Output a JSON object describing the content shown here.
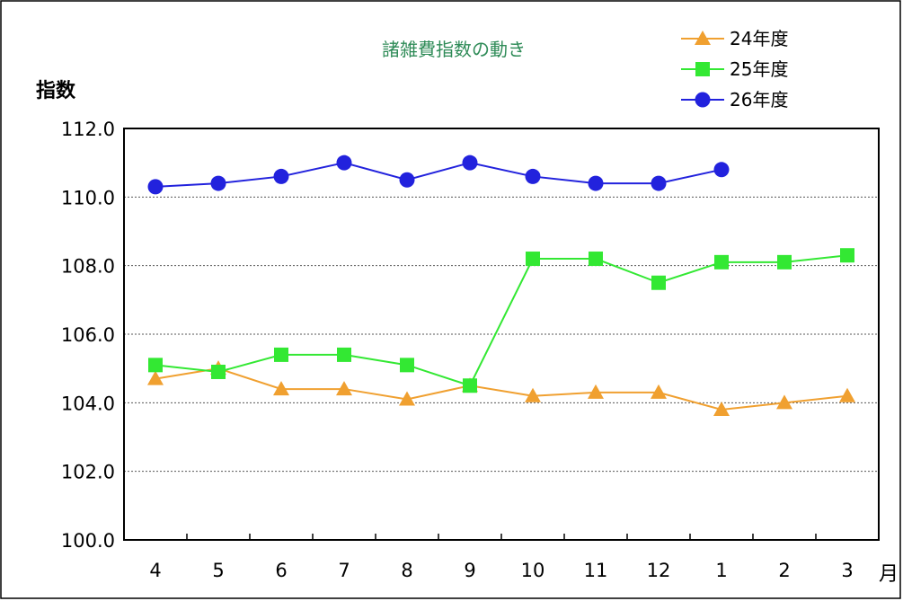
{
  "chart_data": {
    "type": "line",
    "title": "諸雑費指数の動き",
    "ylabel": "指数",
    "xlabel": "月",
    "ylim": [
      100.0,
      112.0
    ],
    "yticks": [
      "100.0",
      "102.0",
      "104.0",
      "106.0",
      "108.0",
      "110.0",
      "112.0"
    ],
    "categories": [
      "4",
      "5",
      "6",
      "7",
      "8",
      "9",
      "10",
      "11",
      "12",
      "1",
      "2",
      "3"
    ],
    "grid": "horizontal dotted",
    "legend_position": "top-right",
    "series": [
      {
        "name": "24年度",
        "color": "#f0a030",
        "marker": "triangle",
        "values": [
          104.7,
          105.0,
          104.4,
          104.4,
          104.1,
          104.5,
          104.2,
          104.3,
          104.3,
          103.8,
          104.0,
          104.2
        ]
      },
      {
        "name": "25年度",
        "color": "#33e833",
        "marker": "square",
        "values": [
          105.1,
          104.9,
          105.4,
          105.4,
          105.1,
          104.5,
          108.2,
          108.2,
          107.5,
          108.1,
          108.1,
          108.3
        ]
      },
      {
        "name": "26年度",
        "color": "#2222dd",
        "marker": "circle",
        "values": [
          110.3,
          110.4,
          110.6,
          111.0,
          110.5,
          111.0,
          110.6,
          110.4,
          110.4,
          110.8,
          null,
          null
        ]
      }
    ]
  },
  "colors": {
    "title": "#2e8b57",
    "border": "#000000",
    "grid": "#555555"
  }
}
